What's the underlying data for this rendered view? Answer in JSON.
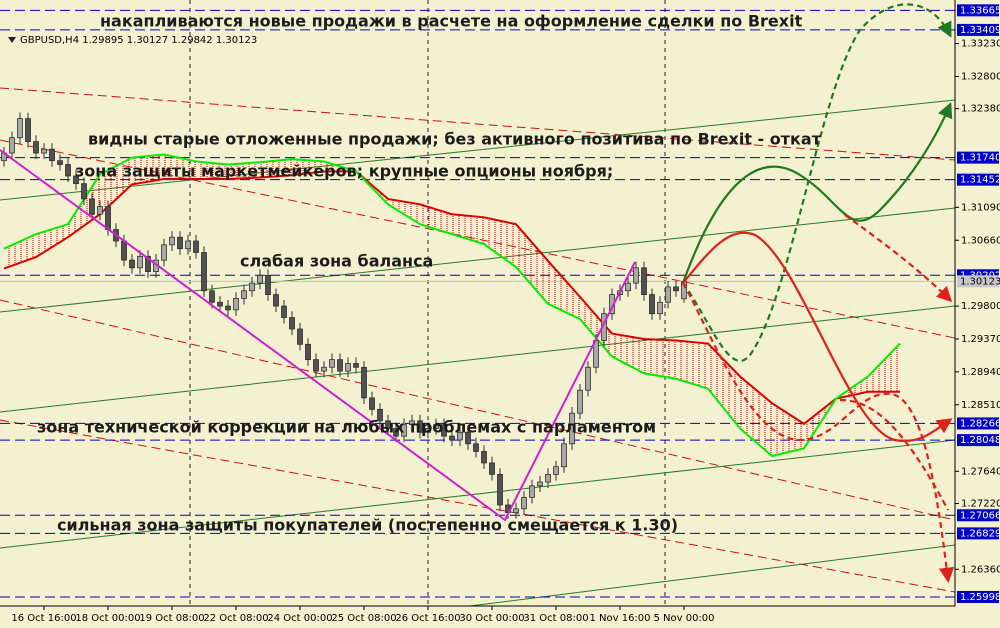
{
  "chart_data": {
    "type": "candlestick",
    "symbol_info": "GBPUSD,H4  1.29895 1.30127 1.29842 1.30123",
    "annotations": [
      "накапливаются новые продажи  в расчете на оформление сделки по Brexit",
      "видны старые отложенные продажи; без активного позитива по Brexit  - откат",
      "зона защиты маркетмейкеров; крупные опционы ноября;",
      "слабая зона баланса",
      "зона технической коррекции на любых проблемах с парламентом",
      "сильная зона защиты покупателей (постепенно смещается к 1.30)"
    ],
    "categories": [
      null,
      null,
      null,
      null,
      null,
      "16 Oct 16:00",
      null,
      null,
      null,
      null,
      null,
      null,
      null,
      "18 Oct 00:00",
      null,
      null,
      null,
      null,
      null,
      null,
      null,
      "19 Oct 08:00",
      null,
      null,
      null,
      null,
      null,
      null,
      null,
      "22 Oct 08:00",
      null,
      null,
      null,
      null,
      null,
      null,
      null,
      "24 Oct 00:00",
      null,
      null,
      null,
      null,
      null,
      null,
      null,
      "25 Oct 08:00",
      null,
      null,
      null,
      null,
      null,
      null,
      null,
      "26 Oct 16:00",
      null,
      null,
      null,
      null,
      null,
      null,
      null,
      "30 Oct 00:00",
      null,
      null,
      null,
      null,
      null,
      null,
      null,
      "31 Oct 08:00",
      null,
      null,
      null,
      null,
      null,
      null,
      null,
      "1 Nov 16:00",
      null,
      null,
      null,
      null,
      null,
      null,
      null,
      "5 Nov 00:00"
    ],
    "series": [
      {
        "bull_color": "#a8a8a8",
        "bear_color": "#505050",
        "ohlc": [
          [
            1.317,
            1.3188,
            1.3162,
            1.318
          ],
          [
            1.318,
            1.3208,
            1.3172,
            1.32
          ],
          [
            1.32,
            1.3233,
            1.3192,
            1.3225
          ],
          [
            1.3225,
            1.3233,
            1.3187,
            1.3195
          ],
          [
            1.3195,
            1.3203,
            1.3172,
            1.318
          ],
          [
            1.318,
            1.3193,
            1.3172,
            1.3185
          ],
          [
            1.3185,
            1.3193,
            1.3162,
            1.317
          ],
          [
            1.317,
            1.3178,
            1.3157,
            1.3165
          ],
          [
            1.3165,
            1.3173,
            1.3142,
            1.315
          ],
          [
            1.315,
            1.3158,
            1.3132,
            1.314
          ],
          [
            1.314,
            1.3148,
            1.3112,
            1.312
          ],
          [
            1.312,
            1.3128,
            1.3092,
            1.31
          ],
          [
            1.31,
            1.3118,
            1.3092,
            1.311
          ],
          [
            1.311,
            1.3118,
            1.3072,
            1.308
          ],
          [
            1.308,
            1.3088,
            1.3057,
            1.3065
          ],
          [
            1.3065,
            1.3073,
            1.3032,
            1.304
          ],
          [
            1.304,
            1.3048,
            1.3022,
            1.303
          ],
          [
            1.303,
            1.3053,
            1.3022,
            1.3045
          ],
          [
            1.3045,
            1.3053,
            1.3017,
            1.3025
          ],
          [
            1.3025,
            1.3048,
            1.3017,
            1.304
          ],
          [
            1.304,
            1.3068,
            1.3032,
            1.306
          ],
          [
            1.306,
            1.3078,
            1.3052,
            1.307
          ],
          [
            1.307,
            1.3078,
            1.3047,
            1.3055
          ],
          [
            1.3055,
            1.3073,
            1.3047,
            1.3065
          ],
          [
            1.3065,
            1.3073,
            1.3042,
            1.305
          ],
          [
            1.305,
            1.3058,
            1.2992,
            1.3
          ],
          [
            1.3,
            1.3008,
            1.2977,
            1.2985
          ],
          [
            1.2985,
            1.2993,
            1.2972,
            1.298
          ],
          [
            1.298,
            1.2988,
            1.2967,
            1.2975
          ],
          [
            1.2975,
            1.2998,
            1.2967,
            1.299
          ],
          [
            1.299,
            1.3008,
            1.2982,
            1.3
          ],
          [
            1.3,
            1.3018,
            1.2992,
            1.301
          ],
          [
            1.301,
            1.3028,
            1.3002,
            1.302
          ],
          [
            1.302,
            1.3028,
            1.2987,
            1.2995
          ],
          [
            1.2995,
            1.3003,
            1.2972,
            1.298
          ],
          [
            1.298,
            1.2988,
            1.2957,
            1.2965
          ],
          [
            1.2965,
            1.2973,
            1.2942,
            1.295
          ],
          [
            1.295,
            1.2958,
            1.2922,
            1.293
          ],
          [
            1.293,
            1.2938,
            1.2902,
            1.291
          ],
          [
            1.291,
            1.2918,
            1.2887,
            1.2895
          ],
          [
            1.2895,
            1.2908,
            1.2887,
            1.29
          ],
          [
            1.29,
            1.2918,
            1.2892,
            1.291
          ],
          [
            1.291,
            1.2918,
            1.2887,
            1.2895
          ],
          [
            1.2895,
            1.2913,
            1.2887,
            1.2905
          ],
          [
            1.2905,
            1.2913,
            1.2892,
            1.29
          ],
          [
            1.29,
            1.2908,
            1.2852,
            1.286
          ],
          [
            1.286,
            1.2868,
            1.2837,
            1.2845
          ],
          [
            1.2845,
            1.2853,
            1.2822,
            1.283
          ],
          [
            1.283,
            1.2838,
            1.2812,
            1.282
          ],
          [
            1.282,
            1.2828,
            1.2802,
            1.281
          ],
          [
            1.281,
            1.2833,
            1.2802,
            1.2825
          ],
          [
            1.2825,
            1.2838,
            1.2817,
            1.283
          ],
          [
            1.283,
            1.2838,
            1.2807,
            1.2815
          ],
          [
            1.2815,
            1.2828,
            1.2807,
            1.282
          ],
          [
            1.282,
            1.2833,
            1.2812,
            1.2825
          ],
          [
            1.2825,
            1.2833,
            1.2802,
            1.281
          ],
          [
            1.281,
            1.2818,
            1.2797,
            1.2805
          ],
          [
            1.2805,
            1.2823,
            1.2797,
            1.2815
          ],
          [
            1.2815,
            1.2823,
            1.2792,
            1.28
          ],
          [
            1.28,
            1.2808,
            1.2782,
            1.279
          ],
          [
            1.279,
            1.2798,
            1.2767,
            1.2775
          ],
          [
            1.2775,
            1.2783,
            1.2752,
            1.276
          ],
          [
            1.276,
            1.2768,
            1.2712,
            1.272
          ],
          [
            1.272,
            1.2728,
            1.2702,
            1.271
          ],
          [
            1.271,
            1.2723,
            1.2702,
            1.2715
          ],
          [
            1.2715,
            1.2738,
            1.2707,
            1.273
          ],
          [
            1.273,
            1.2753,
            1.2722,
            1.2745
          ],
          [
            1.2745,
            1.2758,
            1.2737,
            1.275
          ],
          [
            1.275,
            1.2768,
            1.2742,
            1.276
          ],
          [
            1.276,
            1.2778,
            1.2752,
            1.277
          ],
          [
            1.277,
            1.2808,
            1.2762,
            1.28
          ],
          [
            1.28,
            1.2848,
            1.2792,
            1.284
          ],
          [
            1.284,
            1.2878,
            1.2832,
            1.287
          ],
          [
            1.287,
            1.2908,
            1.2862,
            1.29
          ],
          [
            1.29,
            1.2943,
            1.2892,
            1.2935
          ],
          [
            1.2935,
            1.2978,
            1.2927,
            1.297
          ],
          [
            1.297,
            1.3003,
            1.2962,
            1.2995
          ],
          [
            1.2995,
            1.3008,
            1.2987,
            1.3
          ],
          [
            1.3,
            1.3018,
            1.2992,
            1.301
          ],
          [
            1.301,
            1.3038,
            1.3002,
            1.303
          ],
          [
            1.303,
            1.3038,
            1.2987,
            1.2995
          ],
          [
            1.2995,
            1.3003,
            1.2962,
            1.297
          ],
          [
            1.297,
            1.2993,
            1.2962,
            1.2985
          ],
          [
            1.2985,
            1.3013,
            1.2977,
            1.3005
          ],
          [
            1.3005,
            1.3013,
            1.2992,
            1.3
          ],
          [
            1.29895,
            1.30127,
            1.29842,
            1.30123
          ]
        ]
      }
    ],
    "cloud": {
      "x": [
        0,
        4,
        8,
        12,
        16,
        20,
        24,
        28,
        32,
        36,
        40,
        44,
        48,
        52,
        56,
        60,
        64,
        68,
        72,
        76,
        80,
        84,
        88,
        92,
        96,
        100,
        104,
        108,
        112
      ],
      "span_a_color": "#00ee00",
      "span_b_color": "#dd0000",
      "hatch_color": "#cc0000",
      "span_a": [
        1.3055,
        1.3074,
        1.3087,
        1.3152,
        1.3174,
        1.3178,
        1.3169,
        1.3165,
        1.3168,
        1.3172,
        1.3169,
        1.3156,
        1.3113,
        1.3087,
        1.3074,
        1.3061,
        1.3031,
        1.2983,
        1.2963,
        1.2914,
        1.2892,
        1.2885,
        1.2872,
        1.282,
        1.2784,
        1.2794,
        1.2859,
        1.2888,
        1.2931
      ],
      "span_b": [
        1.3029,
        1.3044,
        1.307,
        1.31,
        1.3139,
        1.3146,
        1.3146,
        1.3146,
        1.3148,
        1.3151,
        1.3156,
        1.3156,
        1.312,
        1.3113,
        1.31,
        1.3096,
        1.3087,
        1.3039,
        1.2992,
        1.2944,
        1.2937,
        1.2935,
        1.2931,
        1.2888,
        1.2853,
        1.2826,
        1.2859,
        1.2868,
        1.2868
      ]
    },
    "ylim": [
      1.2588,
      1.338
    ],
    "yticks": [
      {
        "value": 1.3323,
        "label": "1.33230"
      },
      {
        "value": 1.328,
        "label": "1.32800"
      },
      {
        "value": 1.3238,
        "label": "1.32380"
      },
      {
        "value": 1.3109,
        "label": "1.31090"
      },
      {
        "value": 1.3066,
        "label": "1.30660"
      },
      {
        "value": 1.298,
        "label": "1.29800"
      },
      {
        "value": 1.2937,
        "label": "1.29370"
      },
      {
        "value": 1.2894,
        "label": "1.28940"
      },
      {
        "value": 1.2851,
        "label": "1.28510"
      },
      {
        "value": 1.2764,
        "label": "1.27640"
      },
      {
        "value": 1.2722,
        "label": "1.27220"
      },
      {
        "value": 1.2636,
        "label": "1.26360"
      }
    ],
    "levels_color": "#0000cc",
    "levels": [
      1.33665,
      1.33409,
      {
        "value": 1.3174,
        "label": "1.31740"
      },
      1.31452,
      1.30202,
      1.28266,
      1.28048,
      1.27066,
      1.26829,
      1.25998
    ],
    "current_price": 1.30123
  }
}
